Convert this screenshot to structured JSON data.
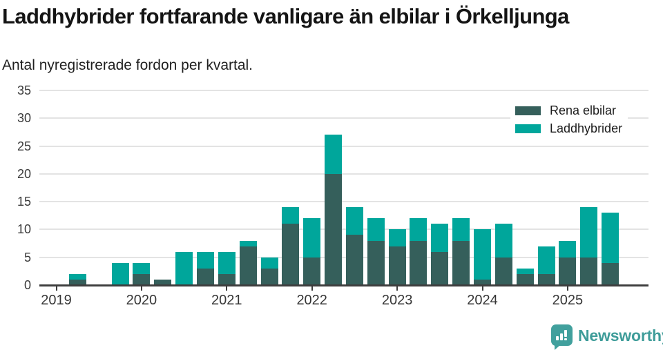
{
  "header": {
    "title": "Laddhybrider fortfarande vanligare än elbilar i Örkelljunga",
    "subtitle": "Antal nyregistrerade fordon per kvartal."
  },
  "chart_data": {
    "type": "bar",
    "stacked": true,
    "title": "Laddhybrider fortfarande vanligare än elbilar i Örkelljunga",
    "subtitle": "Antal nyregistrerade fordon per kvartal.",
    "categories": [
      "2019-Q1",
      "2019-Q2",
      "2019-Q3",
      "2019-Q4",
      "2020-Q1",
      "2020-Q2",
      "2020-Q3",
      "2020-Q4",
      "2021-Q1",
      "2021-Q2",
      "2021-Q3",
      "2021-Q4",
      "2022-Q1",
      "2022-Q2",
      "2022-Q3",
      "2022-Q4",
      "2023-Q1",
      "2023-Q2",
      "2023-Q3",
      "2023-Q4",
      "2024-Q1",
      "2024-Q2",
      "2024-Q3",
      "2024-Q4",
      "2025-Q1",
      "2025-Q2",
      "2025-Q3"
    ],
    "series": [
      {
        "name": "Rena elbilar",
        "color": "#355f5b",
        "values": [
          0,
          1,
          0,
          0,
          2,
          1,
          0,
          3,
          2,
          7,
          3,
          11,
          5,
          20,
          9,
          8,
          7,
          8,
          6,
          8,
          1,
          5,
          2,
          2,
          5,
          5,
          4
        ]
      },
      {
        "name": "Laddhybrider",
        "color": "#00a69b",
        "values": [
          0,
          1,
          0,
          4,
          2,
          0,
          6,
          3,
          4,
          1,
          2,
          3,
          7,
          7,
          5,
          4,
          3,
          4,
          5,
          4,
          9,
          6,
          1,
          5,
          3,
          9,
          9
        ]
      }
    ],
    "xticklabels": [
      "2019",
      "2020",
      "2021",
      "2022",
      "2023",
      "2024",
      "2025"
    ],
    "ylabel": "",
    "xlabel": "",
    "ylim": [
      0,
      35
    ],
    "yticks": [
      0,
      5,
      10,
      15,
      20,
      25,
      30,
      35
    ],
    "grid": true,
    "legend_position": "top-right"
  },
  "footer": {
    "brand": "Newsworthy",
    "brand_color": "#3e9c99",
    "logo_color": "#41a09d",
    "logo_icon": "bar-chart-exclamation-speech-bubble"
  },
  "colors": {
    "grid": "#e3e3e3",
    "axis": "#3d3d3d",
    "tick_label": "#3a3a3a",
    "title": "#141414"
  }
}
